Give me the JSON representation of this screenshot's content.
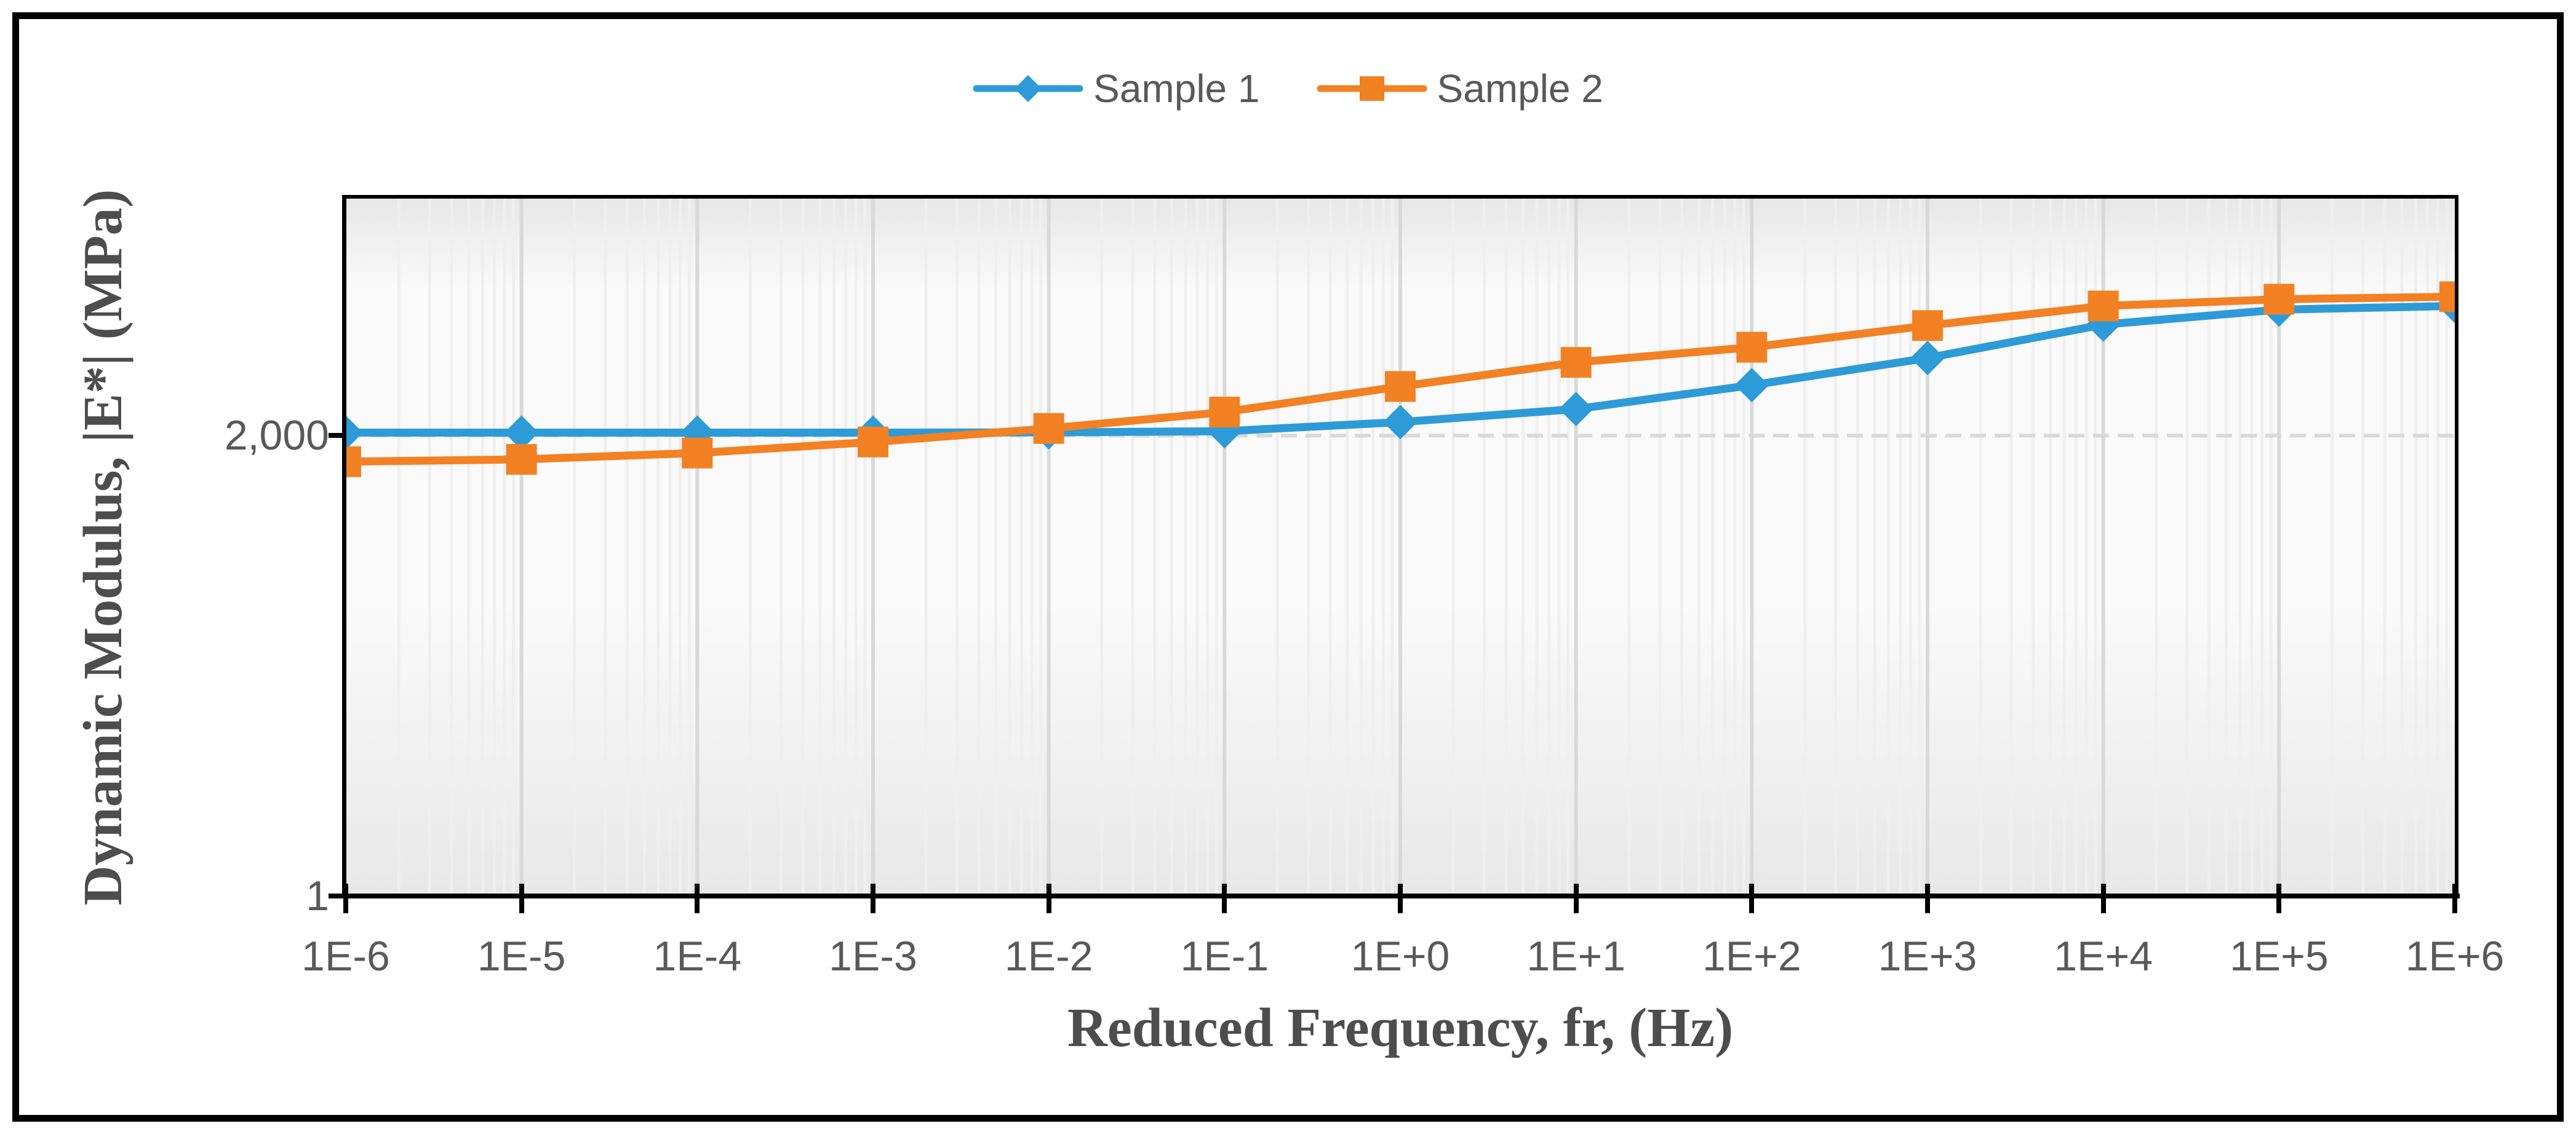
{
  "chart_data": {
    "type": "line",
    "title": "",
    "xlabel": "Reduced Frequency, fr, (Hz)",
    "ylabel": "Dynamic Modulus, |E*| (MPa)",
    "x_scale": "log",
    "y_scale": "log",
    "x_exponents": [
      -6,
      -5,
      -4,
      -3,
      -2,
      -1,
      0,
      1,
      2,
      3,
      4,
      5,
      6
    ],
    "x_tick_labels": [
      "1E-6",
      "1E-5",
      "1E-4",
      "1E-3",
      "1E-2",
      "1E-1",
      "1E+0",
      "1E+1",
      "1E+2",
      "1E+3",
      "1E+4",
      "1E+5",
      "1E+6"
    ],
    "y_axis": {
      "min": 1,
      "max": 100000,
      "ticks": [
        {
          "value": 1,
          "label": "1"
        },
        {
          "value": 2000,
          "label": "2,000"
        }
      ]
    },
    "legend_position": "top-center",
    "grid": {
      "x_major": true,
      "x_minor": true,
      "y_major_dashed": true
    },
    "series": [
      {
        "name": "Sample 1",
        "color": "#2D9BD7",
        "marker": "diamond",
        "values": [
          2100,
          2100,
          2100,
          2100,
          2110,
          2150,
          2500,
          3100,
          4600,
          7200,
          12500,
          16000,
          17000
        ]
      },
      {
        "name": "Sample 2",
        "color": "#F28124",
        "marker": "square",
        "values": [
          1300,
          1350,
          1500,
          1800,
          2250,
          2950,
          4500,
          6700,
          8600,
          12300,
          17000,
          19000,
          19800
        ]
      }
    ]
  },
  "style": {
    "tick_text_color": "#595959",
    "title_text_color": "#4d4d4d",
    "axis_color": "#000000",
    "grid_major_color": "#d9d9d9",
    "grid_minor_color": "#efefef",
    "plot_bg_top": "#e7e7e7",
    "plot_bg_mid": "#fafafa",
    "plot_bg_bottom": "#e8e8e8"
  }
}
